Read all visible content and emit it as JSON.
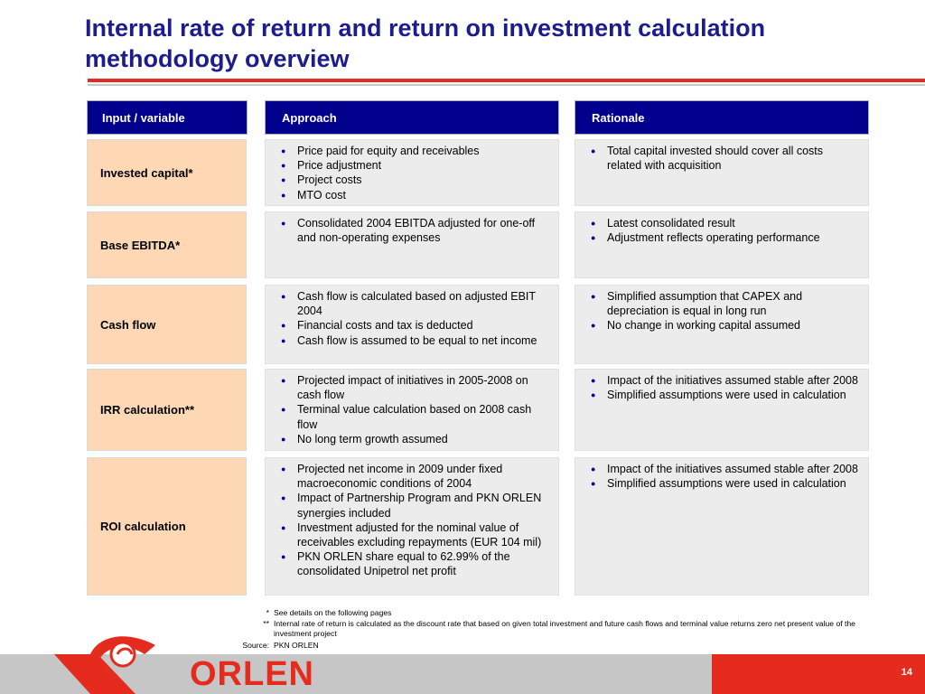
{
  "title": "Internal rate of return and return on investment calculation methodology overview",
  "headers": {
    "input": "Input / variable",
    "approach": "Approach",
    "rationale": "Rationale"
  },
  "rows": [
    {
      "label": "Invested capital*",
      "approach": [
        "Price paid for equity and receivables",
        "Price adjustment",
        "Project costs",
        "MTO cost"
      ],
      "rationale": [
        "Total capital invested should cover all costs related with acquisition"
      ]
    },
    {
      "label": "Base EBITDA*",
      "approach": [
        "Consolidated 2004 EBITDA adjusted for one-off and non-operating expenses"
      ],
      "rationale": [
        "Latest consolidated result",
        "Adjustment reflects operating performance"
      ]
    },
    {
      "label": "Cash flow",
      "approach": [
        "Cash flow is calculated based on adjusted EBIT 2004",
        "Financial costs and tax is deducted",
        "Cash flow is assumed to be equal to net income"
      ],
      "rationale": [
        "Simplified assumption that CAPEX and depreciation is equal in long run",
        "No change in working capital assumed"
      ]
    },
    {
      "label": "IRR calculation**",
      "approach": [
        "Projected impact of initiatives in 2005-2008 on cash flow",
        "Terminal value calculation based on 2008 cash flow",
        "No long term growth assumed"
      ],
      "rationale": [
        "Impact of the initiatives assumed stable after 2008",
        "Simplified assumptions were used in calculation"
      ]
    },
    {
      "label": "ROI calculation",
      "approach": [
        "Projected net income in 2009 under fixed macroeconomic conditions of 2004",
        "Impact of Partnership Program and PKN ORLEN synergies included",
        "Investment adjusted for the nominal value of receivables excluding repayments (EUR 104 mil)",
        "PKN ORLEN share equal to 62.99% of the consolidated Unipetrol net profit"
      ],
      "rationale": [
        "Impact of the initiatives assumed stable after 2008",
        "Simplified assumptions were used in calculation"
      ]
    }
  ],
  "footnotes": [
    {
      "mark": "*",
      "text": "See details on the following pages"
    },
    {
      "mark": "**",
      "text": "Internal rate of return is calculated as the discount rate that based on given total investment and future cash flows and terminal value returns zero net present value of the investment project"
    },
    {
      "mark": "Source:",
      "text": "PKN ORLEN"
    }
  ],
  "brand": "ORLEN",
  "page_number": "14",
  "colors": {
    "title": "#1c1c8e",
    "header": "#00008c",
    "label_bg": "#fed8b4",
    "cell_bg": "#ececec",
    "accent_red": "#e52b1e"
  },
  "icons": {
    "bullet": "bullet-dot-icon",
    "logo": "eagle-logo-icon"
  }
}
